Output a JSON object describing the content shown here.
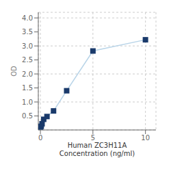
{
  "chart_data": {
    "type": "line",
    "x": [
      0.0,
      0.078,
      0.156,
      0.313,
      0.625,
      1.25,
      2.5,
      5.0,
      10.0
    ],
    "series": [
      {
        "type": "line",
        "color": "#b8d4e8",
        "values": [
          0.105,
          0.13,
          0.22,
          0.38,
          0.48,
          0.68,
          1.4,
          2.82,
          3.22
        ]
      },
      {
        "type": "scatter",
        "color": "#1a3a6b",
        "marker": "square",
        "values": [
          0.105,
          0.13,
          0.22,
          0.38,
          0.48,
          0.68,
          1.4,
          2.82,
          3.22
        ]
      }
    ],
    "xlabel": "Human ZC3H11A\nConcentration (ng/ml)",
    "ylabel": "OD",
    "xlim": [
      -0.2,
      11
    ],
    "ylim": [
      0,
      4.2
    ],
    "xticks": [
      0,
      5,
      10
    ],
    "yticks": [
      0.5,
      {
        "value": 1.0,
        "label": "1.0"
      },
      1.5,
      {
        "value": 2.0,
        "label": "2.0"
      },
      2.5,
      {
        "value": 3.0,
        "label": "3.0"
      },
      3.5,
      {
        "value": 4.0,
        "label": "4.0"
      }
    ],
    "grid": true
  }
}
